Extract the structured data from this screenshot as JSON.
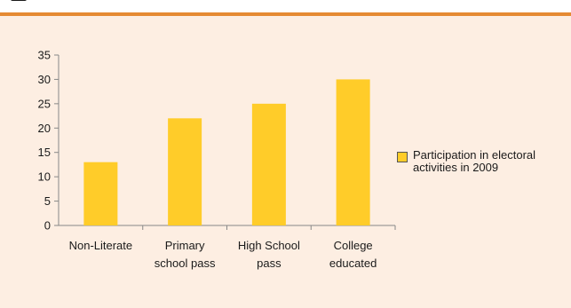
{
  "colors": {
    "background": "#fdeee2",
    "bar": "#ffcc29",
    "accent_rule": "#e58a32",
    "axis": "#888888",
    "text": "#1a1a1a"
  },
  "chart_data": {
    "type": "bar",
    "categories": [
      [
        "Non-Literate"
      ],
      [
        "Primary",
        "school pass"
      ],
      [
        "High School",
        "pass"
      ],
      [
        "College",
        "educated"
      ]
    ],
    "series": [
      {
        "name": "Participation in electoral activities in 2009",
        "values": [
          13,
          22,
          25,
          30
        ]
      }
    ],
    "title": "",
    "xlabel": "",
    "ylabel": "",
    "ylim": [
      0,
      35
    ],
    "yticks": [
      "0",
      "5",
      "10",
      "15",
      "20",
      "25",
      "30",
      "35"
    ],
    "grid": false,
    "legend": "right"
  },
  "legend": {
    "label": "Participation in electoral activities in 2009"
  }
}
